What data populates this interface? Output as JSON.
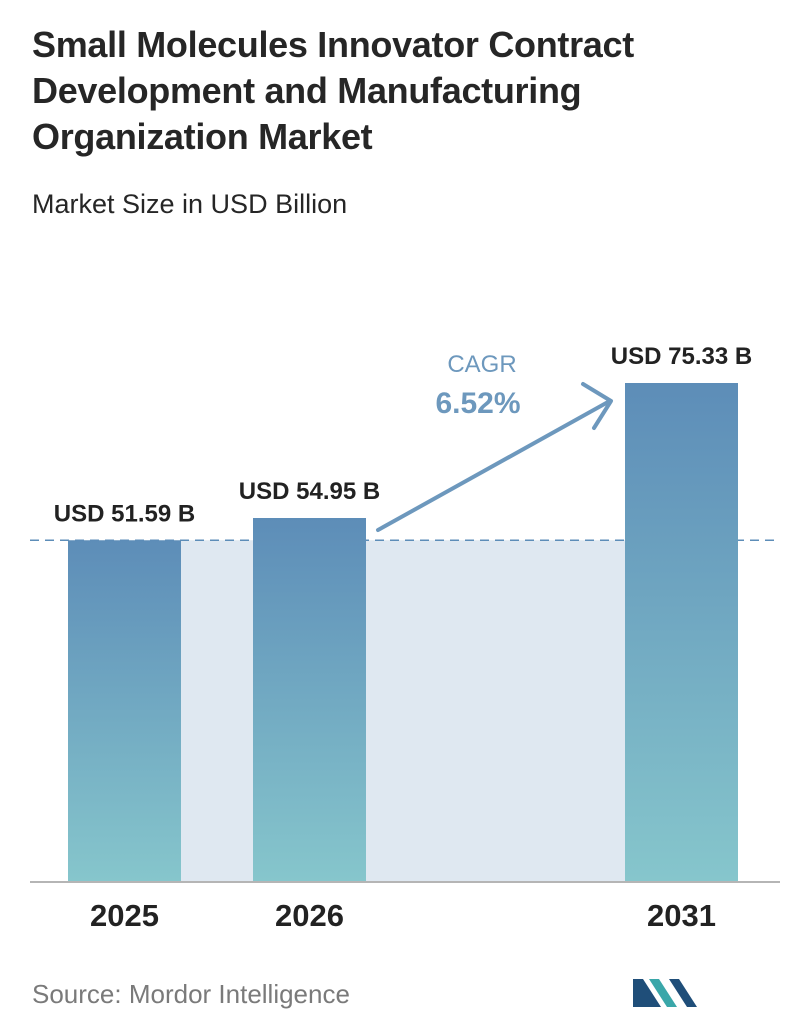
{
  "title": "Small Molecules Innovator Contract Development and Manufacturing Organization Market",
  "subtitle": "Market Size in USD Billion",
  "source": "Source:  Mordor Intelligence",
  "cagr": {
    "label": "CAGR",
    "value": "6.52%"
  },
  "colors": {
    "bar_top": "#5d8db8",
    "bar_bottom": "#86c6cc",
    "gap_fill": "#dfe8f1",
    "cagr": "#6d98bd",
    "dashed_line": "#5d8db8",
    "logo_dark": "#1f4e79",
    "logo_teal": "#3aa7a9"
  },
  "chart_data": {
    "type": "bar",
    "categories": [
      "2025",
      "2026",
      "2031"
    ],
    "values": [
      51.59,
      54.95,
      75.33
    ],
    "data_labels": [
      "USD 51.59 B",
      "USD 54.95 B",
      "USD 75.33 B"
    ],
    "title": "Small Molecules Innovator Contract Development and Manufacturing Organization Market",
    "subtitle": "Market Size in USD Billion",
    "xlabel": "",
    "ylabel": "",
    "ylim": [
      0,
      75.33
    ],
    "grid": false,
    "reference_line_value": 51.59
  }
}
